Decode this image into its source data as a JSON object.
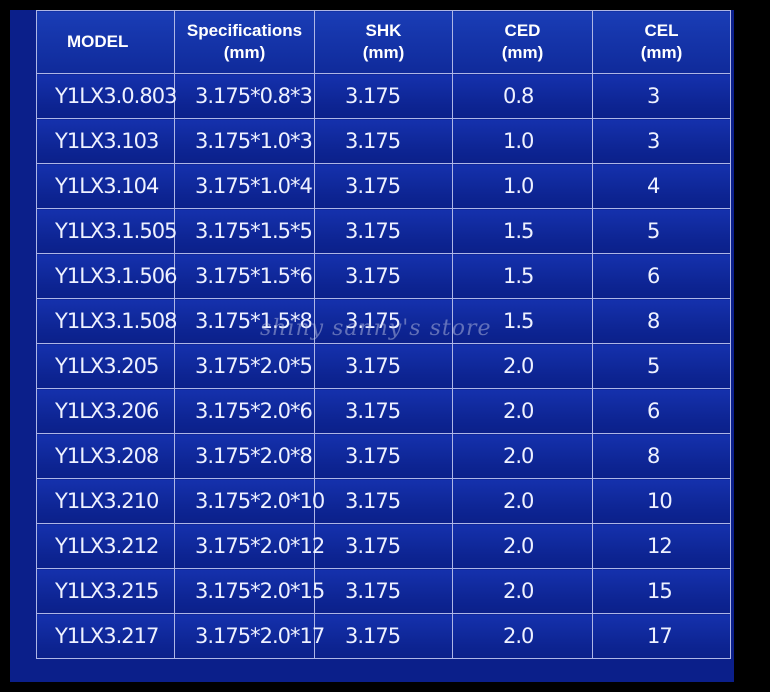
{
  "table": {
    "headers": [
      {
        "line1": "MODEL",
        "line2": ""
      },
      {
        "line1": "Specifications",
        "line2": "(mm)"
      },
      {
        "line1": "SHK",
        "line2": "(mm)"
      },
      {
        "line1": "CED",
        "line2": "(mm)"
      },
      {
        "line1": "CEL",
        "line2": "(mm)"
      }
    ],
    "rows": [
      [
        "Y1LX3.0.803",
        "3.175*0.8*3",
        "3.175",
        "0.8",
        "3"
      ],
      [
        "Y1LX3.103",
        "3.175*1.0*3",
        "3.175",
        "1.0",
        "3"
      ],
      [
        "Y1LX3.104",
        "3.175*1.0*4",
        "3.175",
        "1.0",
        "4"
      ],
      [
        "Y1LX3.1.505",
        "3.175*1.5*5",
        "3.175",
        "1.5",
        "5"
      ],
      [
        "Y1LX3.1.506",
        "3.175*1.5*6",
        "3.175",
        "1.5",
        "6"
      ],
      [
        "Y1LX3.1.508",
        "3.175*1.5*8",
        "3.175",
        "1.5",
        "8"
      ],
      [
        "Y1LX3.205",
        "3.175*2.0*5",
        "3.175",
        "2.0",
        "5"
      ],
      [
        "Y1LX3.206",
        "3.175*2.0*6",
        "3.175",
        "2.0",
        "6"
      ],
      [
        "Y1LX3.208",
        "3.175*2.0*8",
        "3.175",
        "2.0",
        "8"
      ],
      [
        "Y1LX3.210",
        "3.175*2.0*10",
        "3.175",
        "2.0",
        "10"
      ],
      [
        "Y1LX3.212",
        "3.175*2.0*12",
        "3.175",
        "2.0",
        "12"
      ],
      [
        "Y1LX3.215",
        "3.175*2.0*15",
        "3.175",
        "2.0",
        "15"
      ],
      [
        "Y1LX3.217",
        "3.175*2.0*17",
        "3.175",
        "2.0",
        "17"
      ]
    ]
  },
  "watermark": "shiny sanny's store",
  "colors": {
    "background": "#0b1f8a",
    "frame": "#000000",
    "grid": "#aeb6e6",
    "text": "#ffffff"
  }
}
